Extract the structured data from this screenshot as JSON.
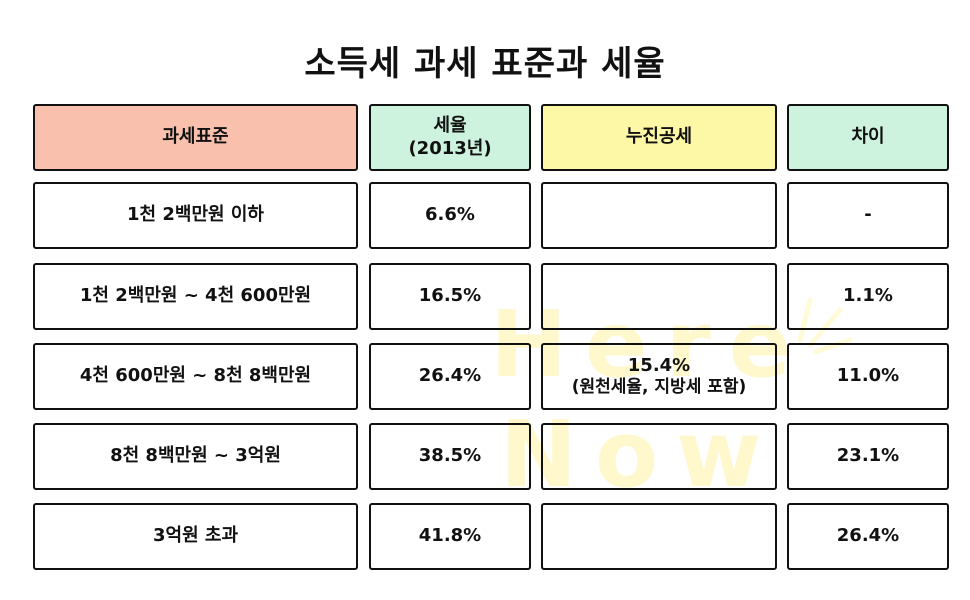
{
  "title": "소득세 과세 표준과 세율",
  "colors": {
    "header_pink": "#f8c0ad",
    "header_green": "#cdf2dd",
    "header_yellow": "#fdf8a6",
    "border": "#111111"
  },
  "watermark": {
    "line1": "Here",
    "line2": "Now"
  },
  "headers": {
    "tax_base": "과세표준",
    "rate_line1": "세율",
    "rate_line2": "(2013년)",
    "progressive_deduction": "누진공세",
    "difference": "차이"
  },
  "rows": [
    {
      "bracket": "1천 2백만원 이하",
      "rate": "6.6%",
      "difference": "-"
    },
    {
      "bracket": "1천 2백만원 ~ 4천 600만원",
      "rate": "16.5%",
      "difference": "1.1%"
    },
    {
      "bracket": "4천 600만원 ~ 8천 8백만원",
      "rate": "26.4%",
      "difference": "11.0%"
    },
    {
      "bracket": "8천 8백만원 ~ 3억원",
      "rate": "38.5%",
      "difference": "23.1%"
    },
    {
      "bracket": "3억원 초과",
      "rate": "41.8%",
      "difference": "26.4%"
    }
  ],
  "deduction_note": {
    "line1": "15.4%",
    "line2": "(원천세율, 지방세 포함)"
  }
}
